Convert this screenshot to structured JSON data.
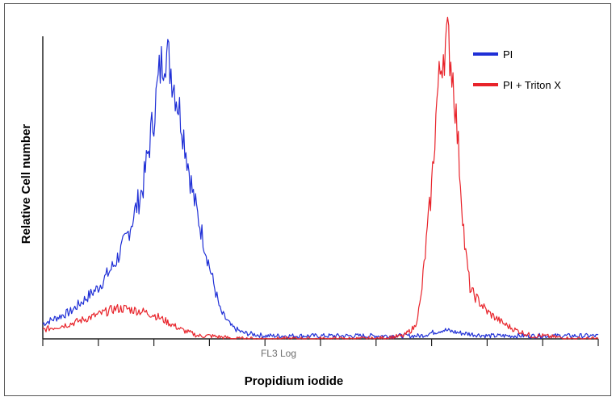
{
  "chart_data": {
    "type": "line",
    "title": "",
    "xlabel": "Propidium iodide",
    "xlabel_sub": "FL3 Log",
    "ylabel": "Relative Cell number",
    "xlim": [
      0,
      100
    ],
    "ylim": [
      0,
      100
    ],
    "grid": false,
    "legend_placement": "top-right",
    "x_tick_count": 11,
    "series": [
      {
        "name": "PI",
        "color": "#1f2fd6",
        "x": [
          0,
          5,
          10,
          13,
          15,
          18,
          20,
          21,
          22,
          23,
          25,
          27,
          30,
          32,
          34,
          36,
          40,
          45,
          50,
          55,
          60,
          62,
          65,
          68,
          70,
          72,
          75,
          80,
          85,
          90,
          95,
          100
        ],
        "y": [
          5,
          9,
          17,
          25,
          33,
          50,
          74,
          88,
          96,
          90,
          72,
          48,
          24,
          9,
          4,
          2,
          1,
          1,
          1,
          1,
          1,
          1,
          1,
          1,
          2,
          3,
          2,
          1,
          1,
          1,
          1,
          1
        ]
      },
      {
        "name": "PI + Triton X",
        "color": "#e8232a",
        "x": [
          0,
          5,
          10,
          13,
          15,
          18,
          20,
          23,
          25,
          28,
          30,
          35,
          40,
          45,
          50,
          60,
          65,
          67,
          68,
          70,
          71,
          72,
          73,
          74,
          75,
          76,
          77,
          80,
          83,
          85,
          88,
          90,
          95,
          100
        ],
        "y": [
          3,
          5,
          8,
          10,
          10,
          9,
          8,
          5,
          3,
          1,
          1,
          0,
          0,
          0,
          0,
          0,
          1,
          4,
          12,
          50,
          80,
          95,
          99,
          84,
          58,
          30,
          16,
          9,
          5,
          3,
          1,
          1,
          0,
          0
        ]
      }
    ]
  }
}
